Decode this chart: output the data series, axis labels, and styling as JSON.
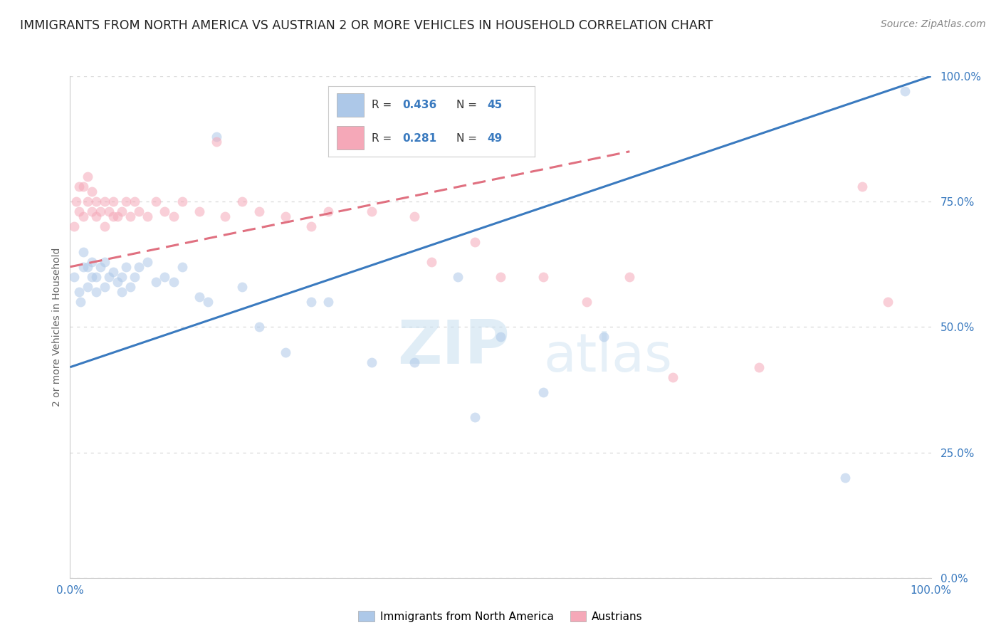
{
  "title": "IMMIGRANTS FROM NORTH AMERICA VS AUSTRIAN 2 OR MORE VEHICLES IN HOUSEHOLD CORRELATION CHART",
  "source": "Source: ZipAtlas.com",
  "ylabel": "2 or more Vehicles in Household",
  "xlim": [
    0,
    1
  ],
  "ylim": [
    0,
    1
  ],
  "xtick_labels": [
    "0.0%",
    "100.0%"
  ],
  "ytick_labels": [
    "0.0%",
    "25.0%",
    "50.0%",
    "75.0%",
    "100.0%"
  ],
  "ytick_positions": [
    0.0,
    0.25,
    0.5,
    0.75,
    1.0
  ],
  "watermark": "ZIPatlas",
  "legend_entries": [
    {
      "label": "Immigrants from North America",
      "color": "#adc8e8",
      "R": "0.436",
      "N": "45"
    },
    {
      "label": "Austrians",
      "color": "#f5a8b8",
      "R": "0.281",
      "N": "49"
    }
  ],
  "blue_scatter_x": [
    0.005,
    0.01,
    0.012,
    0.015,
    0.015,
    0.02,
    0.02,
    0.025,
    0.025,
    0.03,
    0.03,
    0.035,
    0.04,
    0.04,
    0.045,
    0.05,
    0.055,
    0.06,
    0.06,
    0.065,
    0.07,
    0.075,
    0.08,
    0.09,
    0.1,
    0.11,
    0.12,
    0.13,
    0.15,
    0.16,
    0.17,
    0.2,
    0.22,
    0.25,
    0.28,
    0.3,
    0.35,
    0.4,
    0.45,
    0.47,
    0.5,
    0.55,
    0.62,
    0.9,
    0.97
  ],
  "blue_scatter_y": [
    0.6,
    0.57,
    0.55,
    0.62,
    0.65,
    0.58,
    0.62,
    0.6,
    0.63,
    0.57,
    0.6,
    0.62,
    0.58,
    0.63,
    0.6,
    0.61,
    0.59,
    0.57,
    0.6,
    0.62,
    0.58,
    0.6,
    0.62,
    0.63,
    0.59,
    0.6,
    0.59,
    0.62,
    0.56,
    0.55,
    0.88,
    0.58,
    0.5,
    0.45,
    0.55,
    0.55,
    0.43,
    0.43,
    0.6,
    0.32,
    0.48,
    0.37,
    0.48,
    0.2,
    0.97
  ],
  "pink_scatter_x": [
    0.005,
    0.007,
    0.01,
    0.01,
    0.015,
    0.015,
    0.02,
    0.02,
    0.025,
    0.025,
    0.03,
    0.03,
    0.035,
    0.04,
    0.04,
    0.045,
    0.05,
    0.05,
    0.055,
    0.06,
    0.065,
    0.07,
    0.075,
    0.08,
    0.09,
    0.1,
    0.11,
    0.12,
    0.13,
    0.15,
    0.17,
    0.18,
    0.2,
    0.22,
    0.25,
    0.28,
    0.3,
    0.35,
    0.4,
    0.42,
    0.47,
    0.5,
    0.55,
    0.6,
    0.65,
    0.7,
    0.8,
    0.92,
    0.95
  ],
  "pink_scatter_y": [
    0.7,
    0.75,
    0.73,
    0.78,
    0.72,
    0.78,
    0.75,
    0.8,
    0.73,
    0.77,
    0.72,
    0.75,
    0.73,
    0.7,
    0.75,
    0.73,
    0.72,
    0.75,
    0.72,
    0.73,
    0.75,
    0.72,
    0.75,
    0.73,
    0.72,
    0.75,
    0.73,
    0.72,
    0.75,
    0.73,
    0.87,
    0.72,
    0.75,
    0.73,
    0.72,
    0.7,
    0.73,
    0.73,
    0.72,
    0.63,
    0.67,
    0.6,
    0.6,
    0.55,
    0.6,
    0.4,
    0.42,
    0.78,
    0.55
  ],
  "blue_line": {
    "x0": 0.0,
    "y0": 0.42,
    "x1": 1.0,
    "y1": 1.0
  },
  "pink_line": {
    "x0": 0.0,
    "y0": 0.62,
    "x1": 0.65,
    "y1": 0.85
  },
  "blue_line_color": "#3a7abf",
  "pink_line_color": "#e07080",
  "blue_scatter_color": "#adc8e8",
  "pink_scatter_color": "#f5a8b8",
  "title_color": "#222222",
  "source_color": "#888888",
  "grid_color": "#dddddd",
  "tick_color": "#3a7abf",
  "background_color": "#ffffff",
  "marker_size": 100,
  "marker_alpha": 0.55,
  "line_width": 2.2
}
